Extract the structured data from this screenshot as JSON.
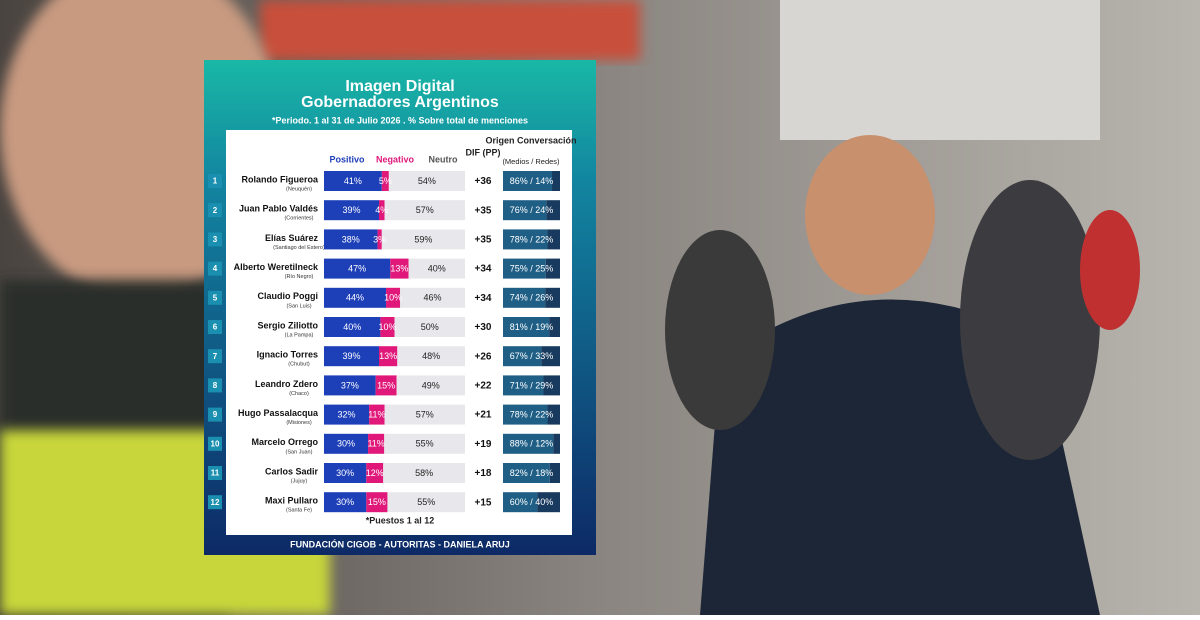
{
  "header": {
    "title_line1": "Imagen Digital",
    "title_line2": "Gobernadores Argentinos",
    "subtitle": "*Periodo. 1 al 31 de Julio 2026 . % Sobre total de menciones"
  },
  "table": {
    "columns": {
      "positivo": "Positivo",
      "negativo": "Negativo",
      "neutro": "Neutro",
      "dif": "DIF (PP)",
      "origen": "Origen Conversación",
      "origen_sub": "(Medios / Redes)"
    },
    "rows": [
      [
        "1",
        "Rolando Figueroa",
        "(Neuquén)",
        "41%",
        "5%",
        "54%",
        "+36",
        "86% / 14%"
      ],
      [
        "2",
        "Juan Pablo Valdés",
        "(Corrientes)",
        "39%",
        "4%",
        "57%",
        "+35",
        "76% / 24%"
      ],
      [
        "3",
        "Elías Suárez",
        "(Santiago del Estero)",
        "38%",
        "3%",
        "59%",
        "+35",
        "78% / 22%"
      ],
      [
        "4",
        "Alberto Weretilneck",
        "(Río Negro)",
        "47%",
        "13%",
        "40%",
        "+34",
        "75% / 25%"
      ],
      [
        "5",
        "Claudio Poggi",
        "(San Luis)",
        "44%",
        "10%",
        "46%",
        "+34",
        "74% / 26%"
      ],
      [
        "6",
        "Sergio Ziliotto",
        "(La Pampa)",
        "40%",
        "10%",
        "50%",
        "+30",
        "81% / 19%"
      ],
      [
        "7",
        "Ignacio Torres",
        "(Chubut)",
        "39%",
        "13%",
        "48%",
        "+26",
        "67% / 33%"
      ],
      [
        "8",
        "Leandro Zdero",
        "(Chaco)",
        "37%",
        "15%",
        "49%",
        "+22",
        "71% / 29%"
      ],
      [
        "9",
        "Hugo Passalacqua",
        "(Misiones)",
        "32%",
        "11%",
        "57%",
        "+21",
        "78% / 22%"
      ],
      [
        "10",
        "Marcelo Orrego",
        "(San Juan)",
        "30%",
        "11%",
        "55%",
        "+19",
        "88% / 12%"
      ],
      [
        "11",
        "Carlos Sadir",
        "(Jujuy)",
        "30%",
        "12%",
        "58%",
        "+18",
        "82% / 18%"
      ],
      [
        "12",
        "Maxi Pullaro",
        "(Santa Fe)",
        "30%",
        "15%",
        "55%",
        "+15",
        "60% / 40%"
      ]
    ]
  },
  "footer": {
    "note": "*Puestos 1 al 12",
    "credits": "FUNDACIÓN CIGOB - AUTORITAS - DANIELA ARUJ"
  }
}
